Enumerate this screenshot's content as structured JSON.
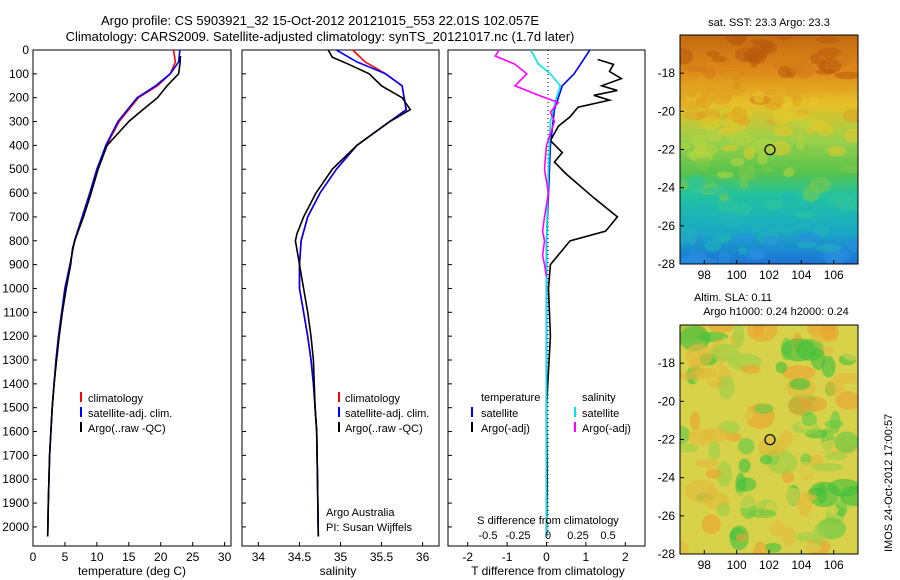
{
  "header": {
    "title_line1": "Argo profile: CS 5903921_32 15-Oct-2012 20121015_553 22.01S 102.057E",
    "title_line2": "Climatology: CARS2009. Satellite-adjusted climatology: synTS_20121017.nc (1.7d later)"
  },
  "side_note": "IMOS 24-Oct-2012 17:00:57",
  "colors": {
    "climatology": "#ff0000",
    "satellite": "#0000ff",
    "argo": "#000000",
    "temp_diff_satellite": "#0000ff",
    "sal_diff_satellite": "#00e5ee",
    "sal_diff_argo": "#ff00ff"
  },
  "chart_data": [
    {
      "type": "line",
      "panel": "temperature",
      "xlabel": "temperature (deg C)",
      "ylabel": "",
      "xlim": [
        0,
        31
      ],
      "ylim": [
        2080,
        0
      ],
      "xticks": [
        "0",
        "5",
        "10",
        "15",
        "20",
        "25",
        "30"
      ],
      "yticks": [
        "0",
        "100",
        "200",
        "300",
        "400",
        "500",
        "600",
        "700",
        "800",
        "900",
        "1000",
        "1100",
        "1200",
        "1300",
        "1400",
        "1500",
        "1600",
        "1700",
        "1800",
        "1900",
        "2000"
      ],
      "legend": [
        "climatology",
        "satellite-adj. clim.",
        "Argo(..raw -QC)"
      ],
      "series": [
        {
          "name": "climatology",
          "color": "#ff0000",
          "x": [
            22.0,
            22.3,
            21.5,
            19.5,
            16.5,
            13.5,
            11.5,
            10.0,
            8.9,
            7.7,
            6.5,
            5.8,
            5.0,
            4.5,
            4.0,
            3.6,
            3.3,
            3.0,
            2.8,
            2.6,
            2.4,
            2.3
          ],
          "y": [
            0,
            50,
            100,
            150,
            200,
            300,
            400,
            500,
            600,
            700,
            800,
            900,
            1000,
            1100,
            1200,
            1300,
            1400,
            1500,
            1600,
            1700,
            1900,
            2040
          ]
        },
        {
          "name": "satellite-adj. clim.",
          "color": "#0000ff",
          "x": [
            23.0,
            22.8,
            21.5,
            19.2,
            16.3,
            13.3,
            11.4,
            10.0,
            8.9,
            7.7,
            6.5,
            5.8,
            5.0,
            4.5,
            4.0,
            3.6,
            3.3,
            3.0,
            2.8,
            2.6,
            2.4,
            2.3
          ],
          "y": [
            0,
            50,
            100,
            150,
            200,
            300,
            400,
            500,
            600,
            700,
            800,
            900,
            1000,
            1100,
            1200,
            1300,
            1400,
            1500,
            1600,
            1700,
            1900,
            2040
          ]
        },
        {
          "name": "Argo(..raw -QC)",
          "color": "#000000",
          "x": [
            23.1,
            23.0,
            22.8,
            21.0,
            19.5,
            17.2,
            15.0,
            13.3,
            11.6,
            10.2,
            9.1,
            7.9,
            6.8,
            6.2,
            5.9,
            5.2,
            4.6,
            4.1,
            3.7,
            3.3,
            3.0,
            2.8,
            2.6,
            2.4,
            2.3
          ],
          "y": [
            25,
            60,
            100,
            150,
            200,
            250,
            300,
            350,
            400,
            500,
            600,
            700,
            780,
            830,
            900,
            1000,
            1100,
            1200,
            1300,
            1400,
            1500,
            1600,
            1700,
            1900,
            2040
          ]
        }
      ]
    },
    {
      "type": "line",
      "panel": "salinity",
      "xlabel": "salinity",
      "xlim": [
        33.8,
        36.2
      ],
      "ylim": [
        2080,
        0
      ],
      "xticks": [
        "34",
        "34.5",
        "35",
        "35.5",
        "36"
      ],
      "legend": [
        "climatology",
        "satellite-adj. clim.",
        "Argo(..raw -QC)"
      ],
      "annotation": [
        "Argo Australia",
        "PI: Susan Wijffels"
      ],
      "series": [
        {
          "name": "climatology",
          "color": "#ff0000",
          "x": [
            35.15,
            35.3,
            35.55,
            35.75,
            35.8,
            35.6,
            35.2,
            34.95,
            34.75,
            34.6,
            34.52,
            34.5,
            34.5,
            34.55,
            34.6,
            34.64,
            34.67,
            34.69,
            34.71,
            34.72,
            34.73
          ],
          "y": [
            0,
            50,
            100,
            150,
            250,
            300,
            400,
            500,
            600,
            700,
            800,
            900,
            1000,
            1100,
            1200,
            1300,
            1400,
            1500,
            1600,
            1800,
            2040
          ]
        },
        {
          "name": "satellite-adj. clim.",
          "color": "#0000ff",
          "x": [
            34.95,
            35.2,
            35.55,
            35.75,
            35.8,
            35.6,
            35.2,
            34.95,
            34.75,
            34.6,
            34.52,
            34.5,
            34.5,
            34.55,
            34.6,
            34.64,
            34.67,
            34.69,
            34.71,
            34.72,
            34.73
          ],
          "y": [
            0,
            50,
            100,
            150,
            250,
            300,
            400,
            500,
            600,
            700,
            800,
            900,
            1000,
            1100,
            1200,
            1300,
            1400,
            1500,
            1600,
            1800,
            2040
          ]
        },
        {
          "name": "Argo(..raw -QC)",
          "color": "#000000",
          "x": [
            34.85,
            34.9,
            35.1,
            35.35,
            35.5,
            35.75,
            35.85,
            35.6,
            35.2,
            34.9,
            34.7,
            34.55,
            34.47,
            34.45,
            34.5,
            34.55,
            34.6,
            34.64,
            34.67,
            34.69,
            34.71,
            34.72,
            34.73
          ],
          "y": [
            0,
            30,
            60,
            100,
            150,
            200,
            250,
            300,
            400,
            500,
            600,
            700,
            770,
            800,
            900,
            1000,
            1100,
            1200,
            1300,
            1500,
            1600,
            1800,
            2040
          ]
        }
      ]
    },
    {
      "type": "line",
      "panel": "differences",
      "xlabel": "T difference from climatology",
      "xlabel_top": "S difference from climatology",
      "xlim": [
        -2.5,
        2.5
      ],
      "ylim": [
        2080,
        0
      ],
      "xticks": [
        "-2",
        "-1",
        "0",
        "1",
        "2"
      ],
      "xticks_top": [
        "-0.5",
        "-0.25",
        "0",
        "0.25",
        "0.5"
      ],
      "legend_headers": [
        "temperature",
        "salinity"
      ],
      "legend": [
        "satellite",
        "Argo(-adj)",
        "satellite",
        "Argo(-adj)"
      ],
      "series": [
        {
          "name": "temperature satellite",
          "color": "#0000ff",
          "x": [
            1.1,
            0.9,
            0.7,
            0.4,
            0.2,
            0.1,
            0.05,
            0.0,
            0.0,
            0.0,
            0.0
          ],
          "y": [
            0,
            50,
            100,
            150,
            250,
            400,
            600,
            800,
            1200,
            1600,
            2040
          ]
        },
        {
          "name": "temperature Argo(-adj)",
          "color": "#000000",
          "x": [
            1.3,
            1.7,
            1.6,
            1.9,
            1.4,
            1.8,
            1.2,
            1.6,
            0.8,
            0.6,
            0.3,
            0.1,
            0.4,
            0.2,
            0.5,
            1.2,
            1.8,
            1.5,
            0.6,
            0.1,
            0.05,
            0.1,
            0.0,
            0.02,
            0.0
          ],
          "y": [
            40,
            60,
            90,
            120,
            150,
            170,
            190,
            210,
            240,
            280,
            320,
            380,
            430,
            470,
            520,
            620,
            700,
            760,
            800,
            900,
            1000,
            1200,
            1500,
            1800,
            2040
          ]
        },
        {
          "name": "salinity satellite",
          "color": "#00e5ee",
          "x": [
            -0.4,
            -0.3,
            -0.2,
            0.1,
            0.35,
            0.25,
            0.1,
            0.05,
            0.0,
            0.0,
            0.0,
            0.0
          ],
          "y": [
            0,
            30,
            60,
            100,
            150,
            200,
            300,
            500,
            800,
            1100,
            1500,
            2040
          ]
        },
        {
          "name": "salinity Argo(-adj)",
          "color": "#ff00ff",
          "x": [
            -1.2,
            -1.3,
            -0.8,
            -0.5,
            -0.8,
            -0.2,
            0.3,
            0.1,
            0.2,
            0.0,
            -0.05,
            0.05,
            -0.05,
            -0.1,
            -0.05,
            -0.1,
            -0.05,
            0.0
          ],
          "y": [
            0,
            25,
            60,
            100,
            150,
            190,
            220,
            260,
            300,
            400,
            500,
            600,
            700,
            760,
            800,
            860,
            900,
            950
          ]
        }
      ]
    },
    {
      "type": "heatmap",
      "panel": "sst_map",
      "title": "sat. SST: 23.3 Argo: 23.3",
      "xlim": [
        96.5,
        107.5
      ],
      "ylim": [
        -28,
        -16
      ],
      "xticks": [
        "98",
        "100",
        "102",
        "104",
        "106"
      ],
      "yticks": [
        "-18",
        "-20",
        "-22",
        "-24",
        "-26",
        "-28"
      ],
      "marker": {
        "x": 102.06,
        "y": -22.01
      }
    },
    {
      "type": "heatmap",
      "panel": "sla_map",
      "title_line1": "Altim. SLA: 0.11",
      "title_line2": "Argo h1000: 0.24 h2000: 0.24",
      "xlim": [
        96.5,
        107.5
      ],
      "ylim": [
        -28,
        -16
      ],
      "xticks": [
        "98",
        "100",
        "102",
        "104",
        "106"
      ],
      "yticks": [
        "-18",
        "-20",
        "-22",
        "-24",
        "-26",
        "-28"
      ],
      "marker": {
        "x": 102.06,
        "y": -22.01
      }
    }
  ]
}
